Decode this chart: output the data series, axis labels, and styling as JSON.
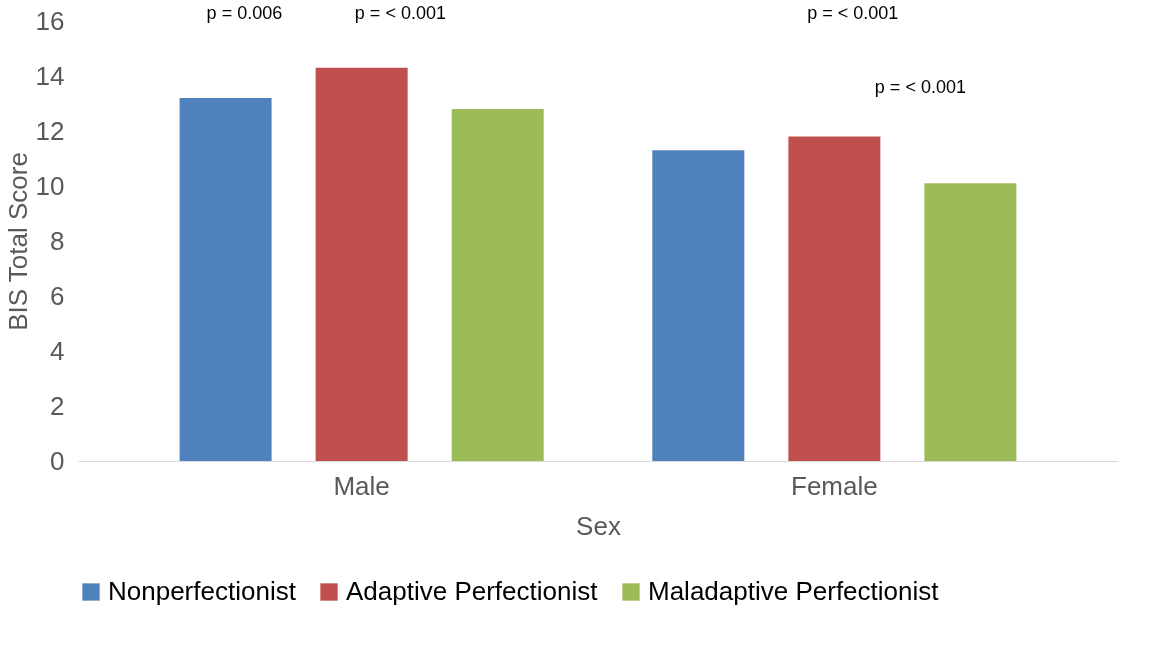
{
  "chart_data": {
    "type": "bar",
    "xlabel": "Sex",
    "ylabel": "BIS Total Score",
    "categories": [
      "Male",
      "Female"
    ],
    "series": [
      {
        "name": "Nonperfectionist",
        "color": "#4f81bd",
        "values": [
          13.2,
          11.3
        ]
      },
      {
        "name": "Adaptive Perfectionist",
        "color": "#c0504d",
        "values": [
          14.3,
          11.8
        ]
      },
      {
        "name": "Maladaptive Perfectionist",
        "color": "#9bbb59",
        "values": [
          12.8,
          10.1
        ]
      }
    ],
    "ylim": [
      0,
      16
    ],
    "yticks": [
      0,
      2,
      4,
      6,
      8,
      10,
      12,
      14,
      16
    ],
    "grid": false,
    "legend": "bottom",
    "annotations": [
      "p = 0.006",
      "p = < 0.001",
      "p = < 0.001",
      "p = < 0.001"
    ]
  }
}
